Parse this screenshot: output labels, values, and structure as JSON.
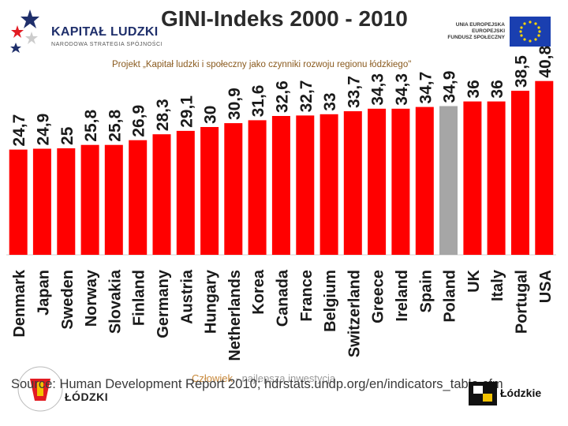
{
  "header": {
    "title": "GINI-Indeks 2000 - 2010",
    "subtitle": "Projekt „Kapitał ludzki i społeczny jako czynniki rozwoju regionu łódzkiego\"",
    "logo_main": "KAPITAŁ LUDZKI",
    "logo_sub": "NARODOWA STRATEGIA SPÓJNOŚCI",
    "eu_line1": "UNIA EUROPEJSKA",
    "eu_line2": "EUROPEJSKI",
    "eu_line3": "FUNDUSZ SPOŁECZNY"
  },
  "footer": {
    "source": "Source: Human Development Report 2010; hdrstats.undp.org/en/indicators_table.cfm",
    "slogan_highlight": "Człowiek",
    "slogan_rest": " - najlepsza inwestycja",
    "left_logo_text": "ŁÓDZKI",
    "right_logo_text": "Łódzkie"
  },
  "colors": {
    "bar": "#ff0000",
    "highlight_bar": "#a6a6a6",
    "label": "#1a1a1a",
    "eu_flag": "#1a3fb0",
    "eu_star": "#ffd700"
  },
  "chart_data": {
    "type": "bar",
    "title": "GINI-Indeks 2000 - 2010",
    "xlabel": "",
    "ylabel": "",
    "ylim": [
      0,
      42
    ],
    "highlight": "Poland",
    "categories": [
      "Denmark",
      "Japan",
      "Sweden",
      "Norway",
      "Slovakia",
      "Finland",
      "Germany",
      "Austria",
      "Hungary",
      "Netherlands",
      "Korea",
      "Canada",
      "France",
      "Belgium",
      "Switzerland",
      "Greece",
      "Ireland",
      "Spain",
      "Poland",
      "UK",
      "Italy",
      "Portugal",
      "USA"
    ],
    "values": [
      24.7,
      24.9,
      25,
      25.8,
      25.8,
      26.9,
      28.3,
      29.1,
      30,
      30.9,
      31.6,
      32.6,
      32.7,
      33,
      33.7,
      34.3,
      34.3,
      34.7,
      34.9,
      36,
      36,
      38.5,
      40.8
    ],
    "value_labels": [
      "24,7",
      "24,9",
      "25",
      "25,8",
      "25,8",
      "26,9",
      "28,3",
      "29,1",
      "30",
      "30,9",
      "31,6",
      "32,6",
      "32,7",
      "33",
      "33,7",
      "34,3",
      "34,3",
      "34,7",
      "34,9",
      "36",
      "36",
      "38,5",
      "40,8"
    ]
  }
}
